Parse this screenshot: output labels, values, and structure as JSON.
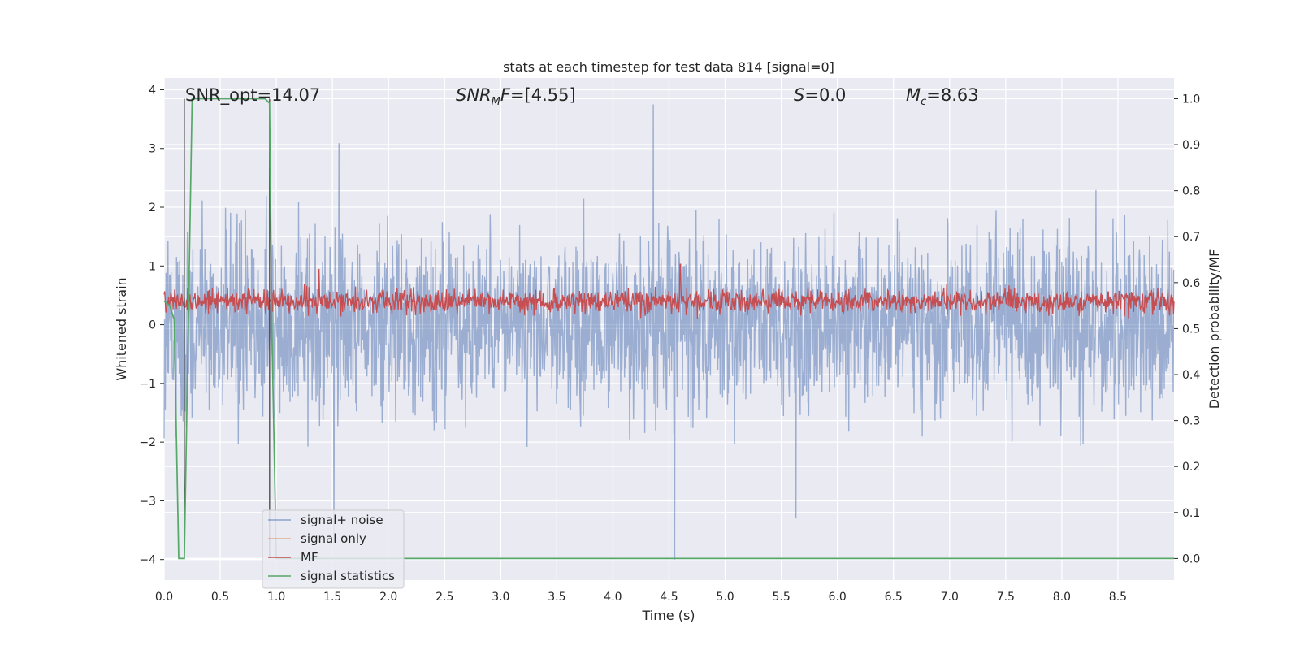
{
  "chart_data": {
    "type": "line",
    "title": "stats at each timestep for test data 814 [signal=0]",
    "xlabel": "Time (s)",
    "ylabel": "Whitened strain",
    "y2label": "Detection probability/MF",
    "xlim": [
      0.0,
      9.0
    ],
    "ylim": [
      -4.35,
      4.2
    ],
    "y2lim": [
      -0.047,
      1.045
    ],
    "xticks": [
      "0.0",
      "0.5",
      "1.0",
      "1.5",
      "2.0",
      "2.5",
      "3.0",
      "3.5",
      "4.0",
      "4.5",
      "5.0",
      "5.5",
      "6.0",
      "6.5",
      "7.0",
      "7.5",
      "8.0",
      "8.5"
    ],
    "yticks": [
      "4",
      "3",
      "2",
      "1",
      "0",
      "−1",
      "−2",
      "−3",
      "−4"
    ],
    "y2ticks": [
      "1.0",
      "0.9",
      "0.8",
      "0.7",
      "0.6",
      "0.5",
      "0.4",
      "0.3",
      "0.2",
      "0.1",
      "0.0"
    ],
    "grid": true,
    "legend_position": "lower-left",
    "annotations": [
      {
        "text": "SNR_opt=14.07"
      },
      {
        "text": "SNR_MF=[4.55]"
      },
      {
        "text": "S=0.0"
      },
      {
        "text": "M_c=8.63"
      }
    ],
    "series": [
      {
        "name": "signal+ noise",
        "axis": "left",
        "color": "#4c72b0",
        "alpha": 0.5,
        "description_values": {
          "typical_band": [
            -1.6,
            1.6
          ],
          "spikes": [
            [
              4.36,
              3.75
            ],
            [
              4.55,
              -4.0
            ],
            [
              5.63,
              -3.3
            ],
            [
              1.56,
              3.08
            ]
          ]
        }
      },
      {
        "name": "signal only",
        "axis": "left",
        "color": "#dd8452",
        "values": []
      },
      {
        "name": "MF",
        "axis": "right",
        "color": "#c44e52",
        "description_values": {
          "typical_band": [
            0.52,
            0.6
          ],
          "peaks": [
            [
              1.38,
              0.63
            ],
            [
              4.6,
              0.64
            ]
          ]
        }
      },
      {
        "name": "signal statistics",
        "axis": "right",
        "color": "#55a868",
        "x": [
          0.0,
          0.05,
          0.09,
          0.13,
          0.18,
          0.25,
          0.26,
          0.33,
          0.9,
          0.94,
          0.96,
          1.0,
          9.0
        ],
        "y": [
          0.56,
          0.55,
          0.52,
          0.0,
          0.0,
          1.0,
          1.0,
          1.0,
          1.0,
          0.99,
          0.5,
          0.0,
          0.0
        ]
      }
    ],
    "vertical_lines_x": [
      0.18,
      0.94
    ],
    "legend": {
      "entries": [
        {
          "label": "signal+ noise",
          "color": "#4c72b0"
        },
        {
          "label": "signal only",
          "color": "#dd8452"
        },
        {
          "label": "MF",
          "color": "#c44e52"
        },
        {
          "label": "signal statistics",
          "color": "#55a868"
        }
      ]
    }
  }
}
